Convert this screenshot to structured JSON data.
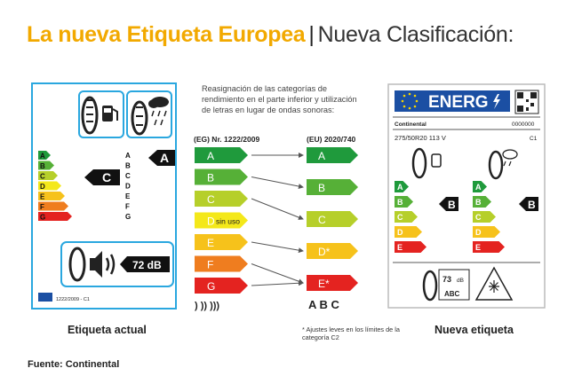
{
  "title": {
    "part1": "La nueva Etiqueta Europea",
    "separator": "|",
    "part2": "Nueva Clasificación:"
  },
  "description": "Reasignación de las categorías de rendimiento en el parte inferior y utilización de letras en lugar de ondas sonoras:",
  "old_regulation": "(EG) Nr. 1222/2009",
  "new_regulation": "(EU) 2020/740",
  "old_classes": [
    {
      "letter": "A",
      "extra": "",
      "color": "#1f9a3c"
    },
    {
      "letter": "B",
      "extra": "",
      "color": "#56b037"
    },
    {
      "letter": "C",
      "extra": "",
      "color": "#b6cf2a"
    },
    {
      "letter": "D",
      "extra": "sin uso",
      "color": "#f4e81a"
    },
    {
      "letter": "E",
      "extra": "",
      "color": "#f6c21b"
    },
    {
      "letter": "F",
      "extra": "",
      "color": "#ef7d1f"
    },
    {
      "letter": "G",
      "extra": "",
      "color": "#e42320"
    }
  ],
  "new_classes": [
    {
      "letter": "A",
      "color": "#1f9a3c"
    },
    {
      "letter": "B",
      "color": "#56b037"
    },
    {
      "letter": "C",
      "color": "#b6cf2a"
    },
    {
      "letter": "D*",
      "color": "#f6c21b"
    },
    {
      "letter": "E*",
      "color": "#e42320"
    }
  ],
  "sound_old": ")  ))  )))",
  "sound_new": "A  B  C",
  "footnote": "* Ajustes leves en los límites de la categoría C2",
  "old_label": {
    "fuel_letters": [
      "A",
      "B",
      "C",
      "D",
      "E",
      "F",
      "G"
    ],
    "wet_letters": [
      "A",
      "B",
      "C",
      "D",
      "E",
      "F",
      "G"
    ],
    "fuel_rating": "C",
    "wet_rating": "A",
    "noise": "72 dB",
    "regulation": "1222/2009 - C1"
  },
  "new_label": {
    "header": "ENERG",
    "brand": "Continental",
    "code": "0000000",
    "size": "275/50R20 113 V",
    "klass": "C1",
    "fuel_letters": [
      "A",
      "B",
      "C",
      "D",
      "E"
    ],
    "wet_letters": [
      "A",
      "B",
      "C",
      "D",
      "E"
    ],
    "fuel_rating": "B",
    "wet_rating": "B",
    "noise_value": "73",
    "noise_unit": "dB",
    "noise_classes": "ABC"
  },
  "captions": {
    "current": "Etiqueta actual",
    "new": "Nueva etiqueta"
  },
  "source": "Fuente: Continental",
  "colors": {
    "accent": "#f2a900",
    "label_border": "#2aa7df",
    "eu_blue": "#1b4fa3"
  }
}
